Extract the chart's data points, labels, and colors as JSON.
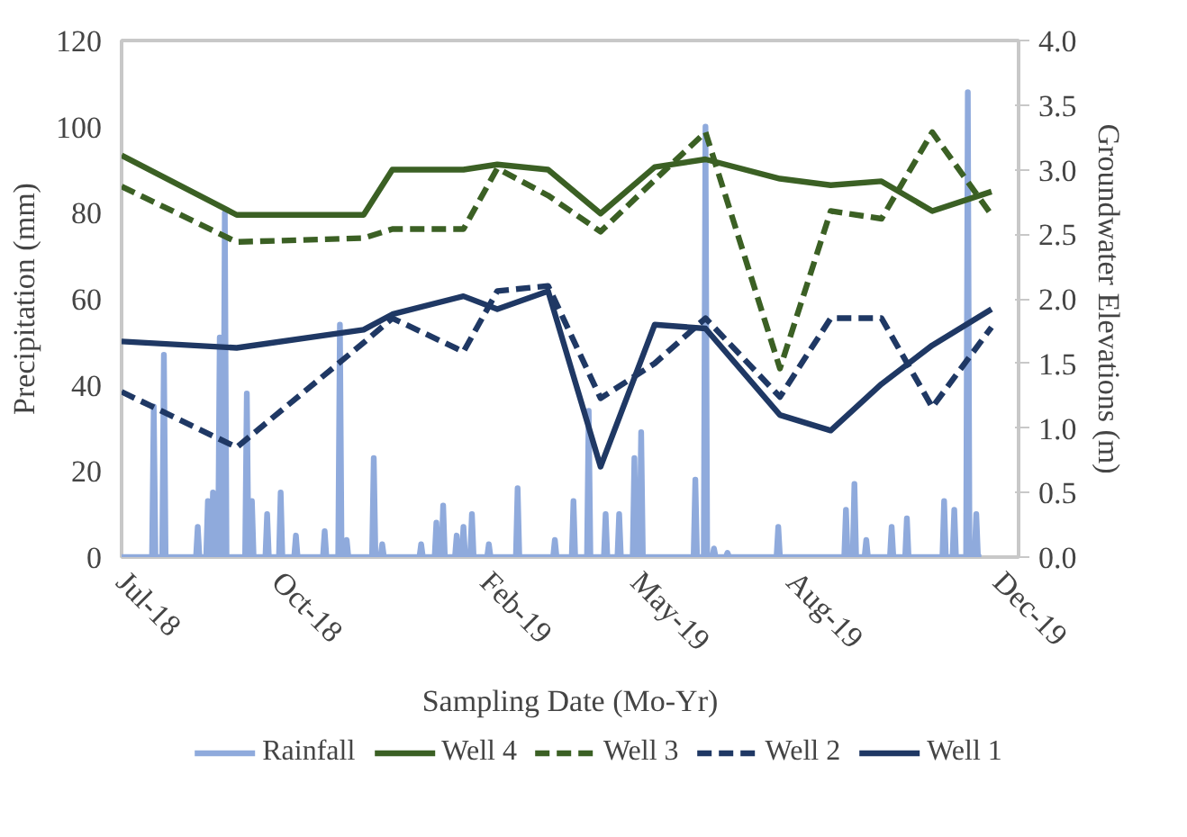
{
  "chart_data": {
    "type": "line",
    "xlabel": "Sampling Date (Mo-Yr)",
    "ylabel": "Precipitation (mm)",
    "y2label": "Groundwater Elevations (m)",
    "xlim": [
      "2018-07-01",
      "2019-12-13"
    ],
    "xticks": [
      {
        "value": "2018-07-01",
        "label": "Jul-18"
      },
      {
        "value": "2018-10-01",
        "label": "Oct-18"
      },
      {
        "value": "2019-02-01",
        "label": "Feb-19"
      },
      {
        "value": "2019-05-01",
        "label": "May-19"
      },
      {
        "value": "2019-08-01",
        "label": "Aug-19"
      },
      {
        "value": "2019-12-01",
        "label": "Dec-19"
      }
    ],
    "ylim": [
      0,
      120
    ],
    "yticks": [
      0,
      20,
      40,
      60,
      80,
      100,
      120
    ],
    "y2lim": [
      0,
      4
    ],
    "y2ticks": [
      {
        "value": 0,
        "label": "0.0"
      },
      {
        "value": 0.5,
        "label": "0.5"
      },
      {
        "value": 1,
        "label": "1.0"
      },
      {
        "value": 1.5,
        "label": "1.5"
      },
      {
        "value": 2,
        "label": "2.0"
      },
      {
        "value": 2.5,
        "label": "2.5"
      },
      {
        "value": 3,
        "label": "3.0"
      },
      {
        "value": 3.5,
        "label": "3.5"
      },
      {
        "value": 4,
        "label": "4.0"
      }
    ],
    "grid": false,
    "legend": "bottom",
    "series": [
      {
        "name": "Rainfall",
        "color": "#8faadc",
        "line_style": "solid",
        "x": [
          "2018-07-01",
          "2018-07-19",
          "2018-07-20",
          "2018-07-21",
          "2018-07-25",
          "2018-07-26",
          "2018-07-27",
          "2018-08-14",
          "2018-08-15",
          "2018-08-16",
          "2018-08-20",
          "2018-08-21",
          "2018-08-22",
          "2018-08-23",
          "2018-08-24",
          "2018-08-25",
          "2018-08-27",
          "2018-08-28",
          "2018-08-29",
          "2018-08-30",
          "2018-08-31",
          "2018-09-01",
          "2018-09-12",
          "2018-09-13",
          "2018-09-14",
          "2018-09-15",
          "2018-09-16",
          "2018-09-17",
          "2018-09-24",
          "2018-09-25",
          "2018-09-26",
          "2018-10-02",
          "2018-10-03",
          "2018-10-04",
          "2018-10-11",
          "2018-10-12",
          "2018-10-13",
          "2018-10-28",
          "2018-10-29",
          "2018-10-30",
          "2018-11-06",
          "2018-11-07",
          "2018-11-08",
          "2018-11-10",
          "2018-11-11",
          "2018-11-12",
          "2018-11-26",
          "2018-11-27",
          "2018-11-28",
          "2018-12-01",
          "2018-12-02",
          "2018-12-03",
          "2018-12-24",
          "2018-12-25",
          "2018-12-26",
          "2019-01-02",
          "2019-01-03",
          "2019-01-04",
          "2019-01-06",
          "2019-01-07",
          "2019-01-08",
          "2019-01-14",
          "2019-01-15",
          "2019-01-16",
          "2019-01-18",
          "2019-01-19",
          "2019-01-20",
          "2019-01-23",
          "2019-01-24",
          "2019-01-25",
          "2019-02-02",
          "2019-02-03",
          "2019-02-04",
          "2019-02-19",
          "2019-02-20",
          "2019-02-21",
          "2019-03-13",
          "2019-03-14",
          "2019-03-15",
          "2019-03-24",
          "2019-03-25",
          "2019-03-26",
          "2019-04-02",
          "2019-04-03",
          "2019-04-04",
          "2019-04-12",
          "2019-04-13",
          "2019-04-14",
          "2019-04-20",
          "2019-04-21",
          "2019-04-22",
          "2019-04-29",
          "2019-04-30",
          "2019-05-01",
          "2019-05-03",
          "2019-05-04",
          "2019-05-05",
          "2019-06-04",
          "2019-06-05",
          "2019-06-06",
          "2019-06-10",
          "2019-06-11",
          "2019-06-12",
          "2019-06-15",
          "2019-06-16",
          "2019-06-17",
          "2019-06-23",
          "2019-06-24",
          "2019-06-25",
          "2019-07-23",
          "2019-07-24",
          "2019-07-25",
          "2019-09-01",
          "2019-09-02",
          "2019-09-03",
          "2019-09-06",
          "2019-09-07",
          "2019-09-08",
          "2019-09-13",
          "2019-09-14",
          "2019-09-15",
          "2019-09-28",
          "2019-09-29",
          "2019-09-30",
          "2019-10-07",
          "2019-10-08",
          "2019-10-09",
          "2019-10-29",
          "2019-10-30",
          "2019-10-31",
          "2019-11-04",
          "2019-11-05",
          "2019-11-06",
          "2019-11-12",
          "2019-11-13",
          "2019-11-14",
          "2019-11-17",
          "2019-11-18",
          "2019-11-19",
          "2019-11-21"
        ],
        "values": [
          0,
          0,
          35,
          0,
          0,
          47,
          0,
          0,
          7,
          0,
          0,
          13,
          0,
          0,
          15,
          0,
          0,
          51,
          0,
          0,
          80,
          0,
          0,
          38,
          0,
          0,
          13,
          0,
          0,
          10,
          0,
          0,
          15,
          0,
          0,
          5,
          0,
          0,
          6,
          0,
          0,
          54,
          0,
          0,
          4,
          0,
          0,
          23,
          0,
          0,
          3,
          0,
          0,
          3,
          0,
          0,
          8,
          0,
          0,
          12,
          0,
          0,
          5,
          0,
          0,
          7,
          0,
          0,
          10,
          0,
          0,
          3,
          0,
          0,
          16,
          0,
          0,
          4,
          0,
          0,
          13,
          0,
          0,
          34,
          0,
          0,
          10,
          0,
          0,
          10,
          0,
          0,
          23,
          0,
          0,
          29,
          0,
          0,
          18,
          0,
          0,
          100,
          0,
          0,
          2,
          0,
          0,
          1,
          0,
          0,
          7,
          0,
          0,
          11,
          0,
          0,
          17,
          0,
          0,
          4,
          0,
          0,
          7,
          0,
          0,
          9,
          0,
          0,
          13,
          0,
          0,
          11,
          0,
          0,
          108,
          0,
          0,
          10,
          0,
          0
        ]
      },
      {
        "name": "Well 4",
        "color": "#3b6024",
        "line_style": "solid",
        "axis": "y2",
        "x": [
          "2018-07-01",
          "2018-09-07",
          "2018-11-21",
          "2018-12-08",
          "2019-01-19",
          "2019-02-08",
          "2019-03-10",
          "2019-04-10",
          "2019-05-12",
          "2019-06-11",
          "2019-07-25",
          "2019-08-24",
          "2019-09-23",
          "2019-10-23",
          "2019-11-27"
        ],
        "values": [
          3.11,
          2.65,
          2.65,
          3.0,
          3.0,
          3.04,
          3.0,
          2.66,
          3.02,
          3.08,
          2.93,
          2.88,
          2.91,
          2.68,
          2.83
        ]
      },
      {
        "name": "Well 3",
        "color": "#3b6024",
        "line_style": "dashed",
        "axis": "y2",
        "x": [
          "2018-07-01",
          "2018-09-07",
          "2018-11-21",
          "2018-12-08",
          "2019-01-19",
          "2019-02-08",
          "2019-03-10",
          "2019-04-10",
          "2019-05-12",
          "2019-06-11",
          "2019-07-25",
          "2019-08-24",
          "2019-09-23",
          "2019-10-23",
          "2019-11-27"
        ],
        "values": [
          2.87,
          2.44,
          2.47,
          2.54,
          2.54,
          3.01,
          2.8,
          2.52,
          2.92,
          3.29,
          1.46,
          2.68,
          2.62,
          3.29,
          2.65
        ]
      },
      {
        "name": "Well 2",
        "color": "#1f3864",
        "line_style": "dashed",
        "axis": "y2",
        "x": [
          "2018-07-01",
          "2018-09-07",
          "2018-11-21",
          "2018-12-08",
          "2019-01-19",
          "2019-02-08",
          "2019-03-10",
          "2019-04-10",
          "2019-05-12",
          "2019-06-11",
          "2019-07-25",
          "2019-08-24",
          "2019-09-23",
          "2019-10-23",
          "2019-11-27"
        ],
        "values": [
          1.28,
          0.85,
          1.66,
          1.85,
          1.59,
          2.06,
          2.1,
          1.23,
          1.5,
          1.85,
          1.24,
          1.85,
          1.85,
          1.16,
          1.78
        ]
      },
      {
        "name": "Well 1",
        "color": "#1f3864",
        "line_style": "solid",
        "axis": "y2",
        "x": [
          "2018-07-01",
          "2018-09-07",
          "2018-11-21",
          "2018-12-08",
          "2019-01-19",
          "2019-02-08",
          "2019-03-10",
          "2019-04-10",
          "2019-05-12",
          "2019-06-11",
          "2019-07-25",
          "2019-08-24",
          "2019-09-23",
          "2019-10-23",
          "2019-11-27"
        ],
        "values": [
          1.67,
          1.62,
          1.76,
          1.88,
          2.02,
          1.92,
          2.06,
          0.7,
          1.8,
          1.77,
          1.1,
          0.98,
          1.34,
          1.64,
          1.92
        ]
      }
    ]
  }
}
